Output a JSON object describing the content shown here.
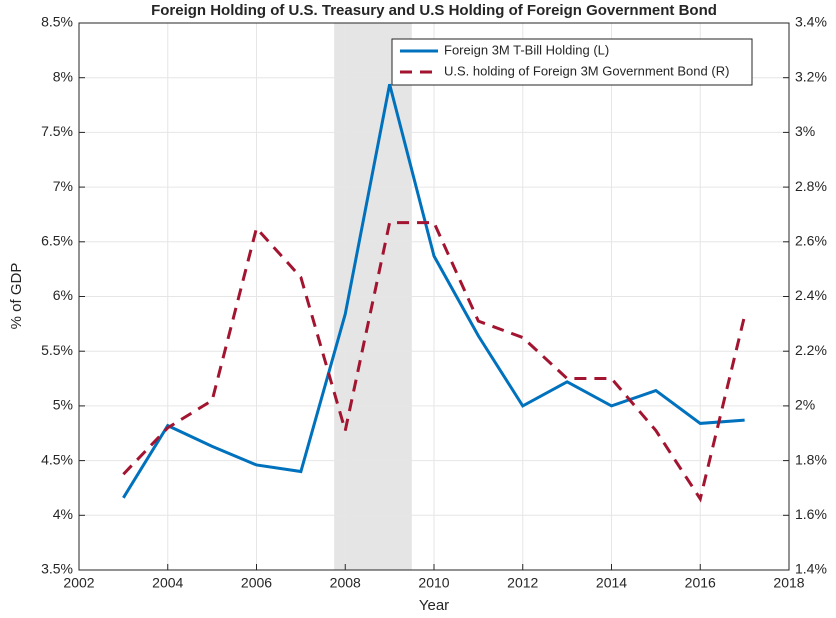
{
  "chart_data": {
    "type": "line",
    "title": "Foreign Holding of U.S. Treasury and U.S Holding of Foreign Government Bond",
    "xlabel": "Year",
    "ylabel": "% of GDP",
    "x": [
      2003,
      2004,
      2005,
      2006,
      2007,
      2008,
      2009,
      2010,
      2011,
      2012,
      2013,
      2014,
      2015,
      2016,
      2017
    ],
    "series": [
      {
        "name": "Foreign 3M T-Bill Holding (L)",
        "color": "#0072bd",
        "dash": false,
        "axis": "y",
        "values": [
          4.16,
          4.82,
          4.63,
          4.46,
          4.4,
          5.84,
          7.94,
          6.37,
          5.64,
          5.0,
          5.22,
          5.0,
          5.14,
          4.84,
          4.87
        ]
      },
      {
        "name": "U.S. holding of Foreign 3M Government Bond (R)",
        "color": "#a2142f",
        "dash": true,
        "axis": "y2",
        "values": [
          1.75,
          1.92,
          2.02,
          2.65,
          2.47,
          1.91,
          2.67,
          2.67,
          2.31,
          2.25,
          2.1,
          2.1,
          1.91,
          1.66,
          2.33
        ]
      }
    ],
    "shaded_x": [
      2007.75,
      2009.5
    ],
    "xlim": [
      2002,
      2018
    ],
    "xticks": [
      2002,
      2004,
      2006,
      2008,
      2010,
      2012,
      2014,
      2016,
      2018
    ],
    "ylim": [
      3.5,
      8.5
    ],
    "yticks": [
      {
        "value": 3.5,
        "label": "3.5%"
      },
      {
        "value": 4,
        "label": "4%"
      },
      {
        "value": 4.5,
        "label": "4.5%"
      },
      {
        "value": 5,
        "label": "5%"
      },
      {
        "value": 5.5,
        "label": "5.5%"
      },
      {
        "value": 6,
        "label": "6%"
      },
      {
        "value": 6.5,
        "label": "6.5%"
      },
      {
        "value": 7,
        "label": "7%"
      },
      {
        "value": 7.5,
        "label": "7.5%"
      },
      {
        "value": 8,
        "label": "8%"
      },
      {
        "value": 8.5,
        "label": "8.5%"
      }
    ],
    "y2lim": [
      1.4,
      3.4
    ],
    "y2ticks": [
      {
        "value": 1.4,
        "label": "1.4%"
      },
      {
        "value": 1.6,
        "label": "1.6%"
      },
      {
        "value": 1.8,
        "label": "1.8%"
      },
      {
        "value": 2,
        "label": "2%"
      },
      {
        "value": 2.2,
        "label": "2.2%"
      },
      {
        "value": 2.4,
        "label": "2.4%"
      },
      {
        "value": 2.6,
        "label": "2.6%"
      },
      {
        "value": 2.8,
        "label": "2.8%"
      },
      {
        "value": 3,
        "label": "3%"
      },
      {
        "value": 3.2,
        "label": "3.2%"
      },
      {
        "value": 3.4,
        "label": "3.4%"
      }
    ],
    "grid": true,
    "legend": "top-right"
  }
}
